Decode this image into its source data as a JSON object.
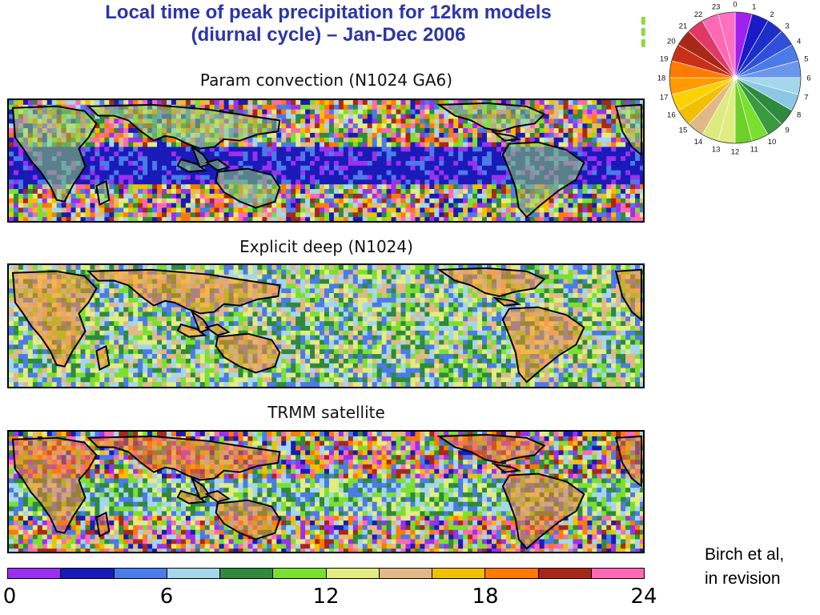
{
  "title_line1": "Local time of peak precipitation for 12km models",
  "title_line2": "(diurnal cycle) – Jan-Dec 2006",
  "panels": [
    {
      "label": "Param convection (N1024 GA6)",
      "ocean_bias": "convective"
    },
    {
      "label": "Explicit deep (N1024)",
      "ocean_bias": "noisy"
    },
    {
      "label": "TRMM satellite",
      "ocean_bias": "observed"
    }
  ],
  "clock_legend": {
    "hours": [
      "0",
      "1",
      "2",
      "3",
      "4",
      "5",
      "6",
      "7",
      "8",
      "9",
      "10",
      "11",
      "12",
      "13",
      "14",
      "15",
      "16",
      "17",
      "18",
      "19",
      "20",
      "21",
      "22",
      "23"
    ],
    "colors": [
      "#a020f0",
      "#1a1ac8",
      "#1e2ec8",
      "#3050dc",
      "#4a7be8",
      "#6a96ec",
      "#a6d6ec",
      "#8cc8e6",
      "#2e8a3c",
      "#3a9a40",
      "#7ae030",
      "#6ed02a",
      "#e2ec82",
      "#dceb80",
      "#e2b888",
      "#f2c000",
      "#ffd000",
      "#ff9a00",
      "#ff7a00",
      "#c83018",
      "#a82818",
      "#e03868",
      "#ff69b4",
      "#ff70c0"
    ]
  },
  "colorbar": {
    "colors": [
      "#9b30f0",
      "#1a1ab8",
      "#4a7be8",
      "#a6d6ec",
      "#2e8a3c",
      "#7ae030",
      "#e2ec82",
      "#e2b888",
      "#f2c000",
      "#ff7a00",
      "#a82818",
      "#ff69b4"
    ],
    "ticks": [
      "0",
      "6",
      "12",
      "18",
      "24"
    ]
  },
  "credit_line1": "Birch et al,",
  "credit_line2": "in revision"
}
